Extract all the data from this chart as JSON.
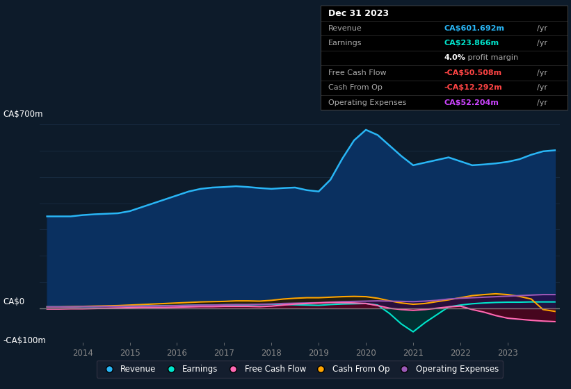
{
  "bg_color": "#0d1b2a",
  "plot_bg_color": "#0d1b2a",
  "grid_color": "#1a2e45",
  "line_color_revenue": "#29b6f6",
  "fill_color_revenue": "#0a3060",
  "line_color_earnings": "#00e5cc",
  "fill_color_earnings": "#003333",
  "line_color_fcf": "#ff69b4",
  "fill_color_fcf": "#5a001a",
  "line_color_cashop": "#ffa500",
  "fill_color_cashop": "#2a1a00",
  "line_color_opex": "#9b59b6",
  "fill_color_opex": "#2a0a4a",
  "zero_line_color": "#888888",
  "legend": [
    {
      "label": "Revenue",
      "color": "#29b6f6"
    },
    {
      "label": "Earnings",
      "color": "#00e5cc"
    },
    {
      "label": "Free Cash Flow",
      "color": "#ff69b4"
    },
    {
      "label": "Cash From Op",
      "color": "#ffa500"
    },
    {
      "label": "Operating Expenses",
      "color": "#9b59b6"
    }
  ],
  "x_years": [
    2013.25,
    2013.5,
    2013.75,
    2014.0,
    2014.25,
    2014.5,
    2014.75,
    2015.0,
    2015.25,
    2015.5,
    2015.75,
    2016.0,
    2016.25,
    2016.5,
    2016.75,
    2017.0,
    2017.25,
    2017.5,
    2017.75,
    2018.0,
    2018.25,
    2018.5,
    2018.75,
    2019.0,
    2019.25,
    2019.5,
    2019.75,
    2020.0,
    2020.25,
    2020.5,
    2020.75,
    2021.0,
    2021.25,
    2021.5,
    2021.75,
    2022.0,
    2022.25,
    2022.5,
    2022.75,
    2023.0,
    2023.25,
    2023.5,
    2023.75,
    2024.0
  ],
  "revenue": [
    350,
    350,
    350,
    355,
    358,
    360,
    362,
    370,
    385,
    400,
    415,
    430,
    445,
    455,
    460,
    462,
    465,
    462,
    458,
    455,
    458,
    460,
    450,
    445,
    490,
    570,
    640,
    680,
    660,
    620,
    580,
    545,
    555,
    565,
    575,
    560,
    545,
    548,
    552,
    558,
    568,
    585,
    598,
    602
  ],
  "earnings": [
    5,
    5,
    5,
    6,
    6,
    7,
    7,
    8,
    9,
    9,
    10,
    10,
    11,
    12,
    12,
    13,
    13,
    13,
    14,
    15,
    14,
    13,
    12,
    11,
    14,
    16,
    17,
    18,
    12,
    -20,
    -60,
    -90,
    -55,
    -25,
    5,
    12,
    17,
    20,
    22,
    23,
    23,
    24,
    24,
    24
  ],
  "fcf": [
    -3,
    -3,
    -2,
    -2,
    -1,
    0,
    1,
    2,
    3,
    3,
    3,
    4,
    5,
    6,
    6,
    7,
    7,
    7,
    6,
    8,
    12,
    16,
    18,
    20,
    22,
    21,
    20,
    18,
    10,
    0,
    -5,
    -8,
    -5,
    0,
    5,
    8,
    -5,
    -15,
    -28,
    -38,
    -42,
    -46,
    -49,
    -51
  ],
  "cashop": [
    5,
    5,
    6,
    7,
    8,
    9,
    10,
    12,
    14,
    16,
    18,
    20,
    22,
    24,
    25,
    26,
    28,
    28,
    27,
    30,
    35,
    38,
    40,
    40,
    42,
    44,
    45,
    44,
    38,
    28,
    20,
    15,
    18,
    25,
    32,
    40,
    48,
    52,
    55,
    52,
    45,
    35,
    -5,
    -12
  ],
  "opex": [
    5,
    5,
    5,
    6,
    6,
    7,
    7,
    8,
    8,
    9,
    9,
    10,
    11,
    12,
    12,
    13,
    14,
    14,
    15,
    16,
    18,
    19,
    20,
    21,
    23,
    25,
    26,
    27,
    28,
    27,
    26,
    25,
    27,
    30,
    35,
    38,
    40,
    42,
    44,
    46,
    48,
    50,
    52,
    52
  ],
  "ylim": [
    -130,
    730
  ],
  "xlim": [
    2013.1,
    2024.1
  ],
  "xtick_years": [
    2014,
    2015,
    2016,
    2017,
    2018,
    2019,
    2020,
    2021,
    2022,
    2023
  ],
  "ylabel_700": "CA$700m",
  "ylabel_0": "CA$0",
  "ylabel_neg100": "-CA$100m",
  "tooltip_title": "Dec 31 2023",
  "tooltip_rows": [
    {
      "label": "Revenue",
      "value": "CA$601.692m",
      "vcolor": "#29b6f6",
      "suffix": "/yr"
    },
    {
      "label": "Earnings",
      "value": "CA$23.866m",
      "vcolor": "#00e5cc",
      "suffix": "/yr"
    },
    {
      "label": "",
      "value": "4.0%",
      "vcolor": "#ffffff",
      "suffix": " profit margin",
      "is_margin": true
    },
    {
      "label": "Free Cash Flow",
      "value": "-CA$50.508m",
      "vcolor": "#ff4444",
      "suffix": "/yr"
    },
    {
      "label": "Cash From Op",
      "value": "-CA$12.292m",
      "vcolor": "#ff4444",
      "suffix": "/yr"
    },
    {
      "label": "Operating Expenses",
      "value": "CA$52.204m",
      "vcolor": "#cc44ff",
      "suffix": "/yr"
    }
  ]
}
